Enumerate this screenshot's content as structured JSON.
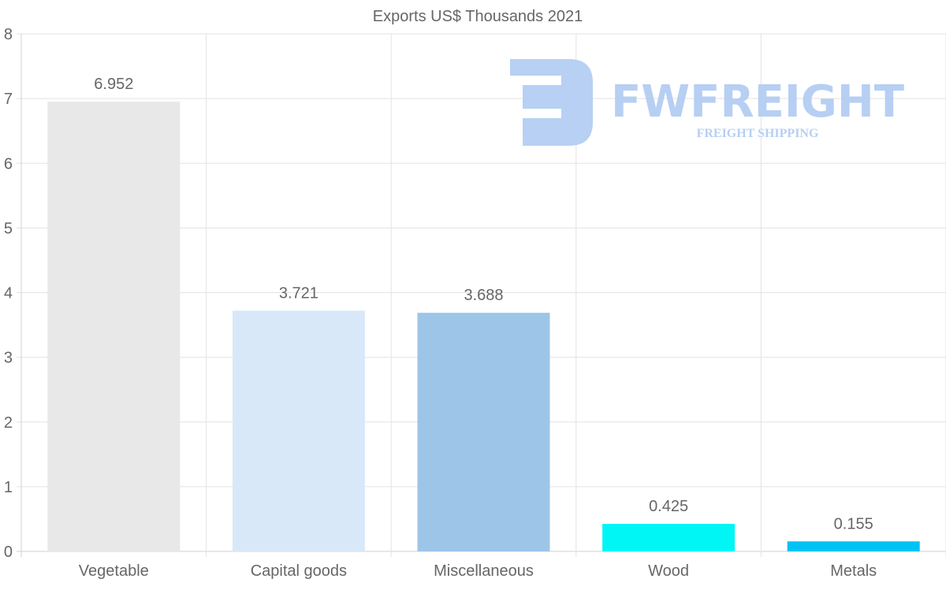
{
  "chart_data": {
    "type": "bar",
    "title": "Exports US$ Thousands 2021",
    "categories": [
      "Vegetable",
      "Capital goods",
      "Miscellaneous",
      "Wood",
      "Metals"
    ],
    "values": [
      6.952,
      3.721,
      3.688,
      0.425,
      0.155
    ],
    "value_labels": [
      "6.952",
      "3.721",
      "3.688",
      "0.425",
      "0.155"
    ],
    "colors": [
      "#e8e8e8",
      "#d9e8f9",
      "#9dc5e8",
      "#00f5f5",
      "#00c3f5"
    ],
    "xlabel": "",
    "ylabel": "",
    "ylim": [
      0,
      8
    ],
    "yticks": [
      0,
      1,
      2,
      3,
      4,
      5,
      6,
      7,
      8
    ],
    "grid": true,
    "legend": "none"
  },
  "watermark": {
    "brand": "FWFREIGHT",
    "tagline": "FREIGHT SHIPPING",
    "color": "#b3cdf3"
  }
}
